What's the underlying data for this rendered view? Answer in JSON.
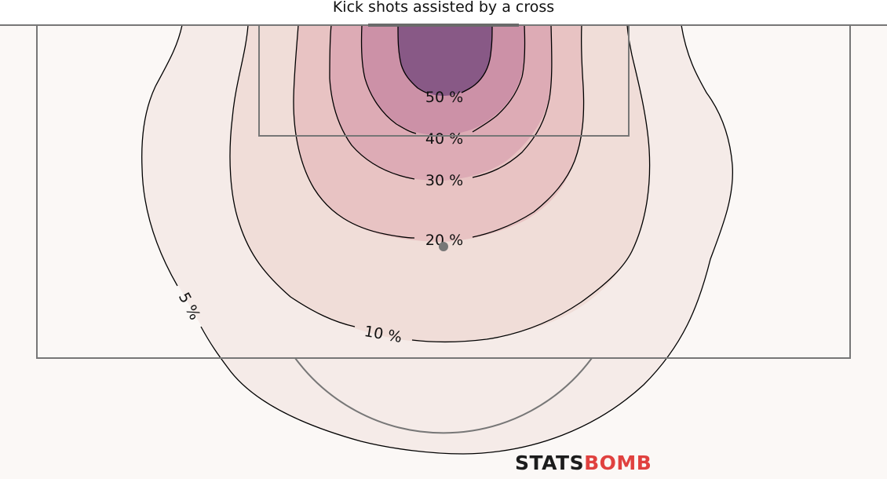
{
  "chart_data": {
    "type": "contour",
    "title": "Kick shots assisted by a cross",
    "levels": [
      {
        "label": "5 %",
        "value": 5,
        "color": "#f5ebe8"
      },
      {
        "label": "10 %",
        "value": 10,
        "color": "#f0ddd8"
      },
      {
        "label": "20 %",
        "value": 20,
        "color": "#e8c3c3"
      },
      {
        "label": "30 %",
        "value": 30,
        "color": "#ddabb5"
      },
      {
        "label": "40 %",
        "value": 40,
        "color": "#cc91a7"
      },
      {
        "label": "50 %",
        "value": 50,
        "color": "#885986"
      }
    ],
    "grid": false,
    "legend": "none"
  },
  "branding": {
    "part1": "STATS",
    "part2": "BOMB"
  },
  "colors": {
    "background": "#fbf8f6",
    "pitch_lines": "#777777",
    "brand_red": "#e0413f"
  }
}
